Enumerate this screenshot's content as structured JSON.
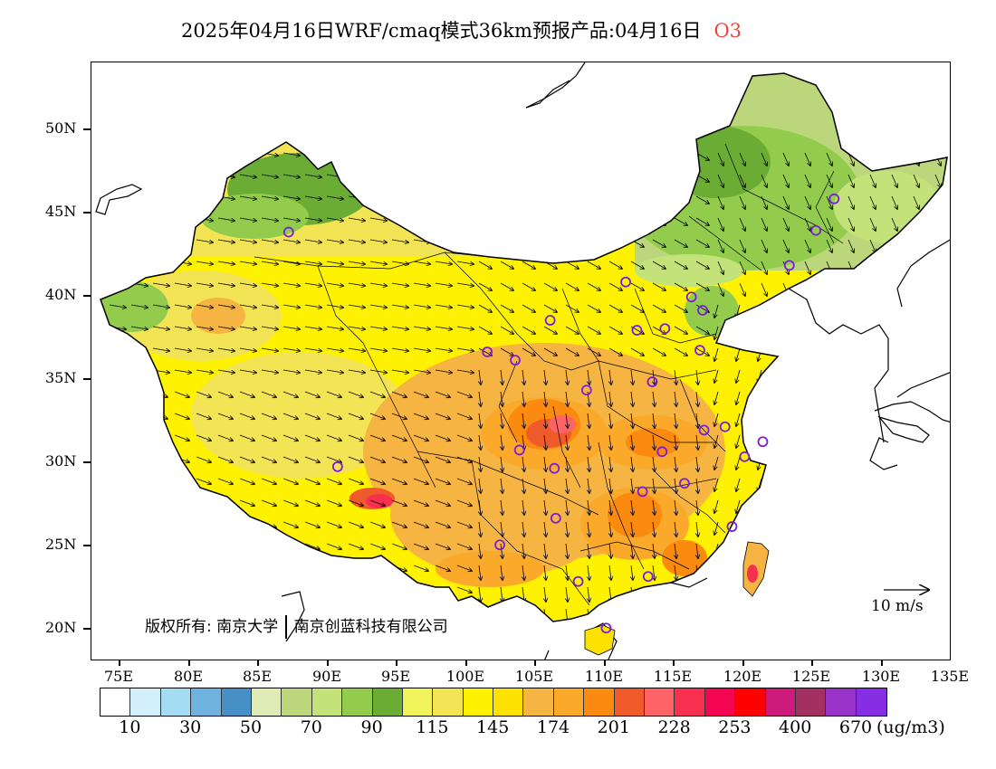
{
  "title": {
    "text": "2025年04月16日WRF/cmaq模式36km预报产品:04月16日",
    "species": "O3"
  },
  "axes": {
    "lat_labels": [
      "20N",
      "25N",
      "30N",
      "35N",
      "40N",
      "45N",
      "50N"
    ],
    "lon_labels": [
      "75E",
      "80E",
      "85E",
      "90E",
      "95E",
      "100E",
      "105E",
      "110E",
      "115E",
      "120E",
      "125E",
      "130E",
      "135E"
    ]
  },
  "copyright": {
    "label": "版权所有:",
    "org1": "南京大学",
    "org2": "南京创蓝科技有限公司"
  },
  "wind_reference": {
    "label": "10 m/s"
  },
  "colorbar": {
    "colors": [
      "#ffffff",
      "#d3effa",
      "#a4dcf3",
      "#6fb2df",
      "#4690c6",
      "#dfeab4",
      "#bcd77b",
      "#c4e27a",
      "#93cc4d",
      "#6aac34",
      "#f0f45a",
      "#f3e455",
      "#fef200",
      "#fde200",
      "#f6b443",
      "#fba92b",
      "#fa8a10",
      "#ef5a2a",
      "#fe6466",
      "#f7304f",
      "#f30552",
      "#fe0000",
      "#cc1a7a",
      "#a43062",
      "#9733c9",
      "#862ee3"
    ],
    "tick_labels": [
      "10",
      "30",
      "50",
      "70",
      "90",
      "115",
      "145",
      "174",
      "201",
      "228",
      "253",
      "400",
      "670"
    ],
    "unit": "(ug/m3)"
  },
  "stations": [
    {
      "lon": 87.6,
      "lat": 43.8
    },
    {
      "lon": 91.1,
      "lat": 29.7
    },
    {
      "lon": 101.8,
      "lat": 36.6
    },
    {
      "lon": 103.8,
      "lat": 36.1
    },
    {
      "lon": 106.3,
      "lat": 38.5
    },
    {
      "lon": 111.7,
      "lat": 40.8
    },
    {
      "lon": 116.4,
      "lat": 39.9
    },
    {
      "lon": 117.2,
      "lat": 39.1
    },
    {
      "lon": 114.5,
      "lat": 38.0
    },
    {
      "lon": 112.5,
      "lat": 37.9
    },
    {
      "lon": 117.0,
      "lat": 36.7
    },
    {
      "lon": 108.9,
      "lat": 34.3
    },
    {
      "lon": 113.6,
      "lat": 34.8
    },
    {
      "lon": 104.1,
      "lat": 30.7
    },
    {
      "lon": 106.6,
      "lat": 29.6
    },
    {
      "lon": 106.7,
      "lat": 26.6
    },
    {
      "lon": 102.7,
      "lat": 25.0
    },
    {
      "lon": 108.3,
      "lat": 22.8
    },
    {
      "lon": 113.3,
      "lat": 23.1
    },
    {
      "lon": 110.3,
      "lat": 20.0
    },
    {
      "lon": 112.9,
      "lat": 28.2
    },
    {
      "lon": 114.3,
      "lat": 30.6
    },
    {
      "lon": 115.9,
      "lat": 28.7
    },
    {
      "lon": 117.3,
      "lat": 31.9
    },
    {
      "lon": 118.8,
      "lat": 32.1
    },
    {
      "lon": 120.2,
      "lat": 30.3
    },
    {
      "lon": 121.5,
      "lat": 31.2
    },
    {
      "lon": 119.3,
      "lat": 26.1
    },
    {
      "lon": 123.4,
      "lat": 41.8
    },
    {
      "lon": 125.3,
      "lat": 43.9
    },
    {
      "lon": 126.6,
      "lat": 45.8
    }
  ]
}
